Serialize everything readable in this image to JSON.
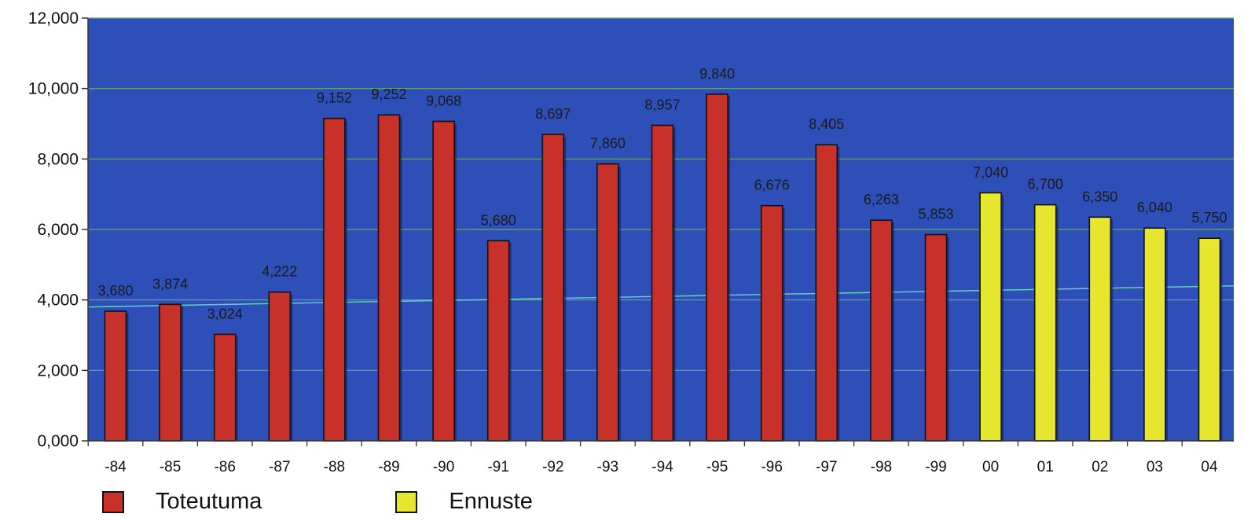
{
  "chart_data": {
    "type": "bar",
    "categories": [
      "-84",
      "-85",
      "-86",
      "-87",
      "-88",
      "-89",
      "-90",
      "-91",
      "-92",
      "-93",
      "-94",
      "-95",
      "-96",
      "-97",
      "-98",
      "-99",
      "00",
      "01",
      "02",
      "03",
      "04"
    ],
    "series": [
      {
        "name": "Toteutuma",
        "color": "#c8302a",
        "values": [
          3.68,
          3.874,
          3.024,
          4.222,
          9.152,
          9.252,
          9.068,
          5.68,
          8.697,
          7.86,
          8.957,
          9.84,
          6.676,
          8.405,
          6.263,
          5.853,
          null,
          null,
          null,
          null,
          null
        ]
      },
      {
        "name": "Ennuste",
        "color": "#e6e62e",
        "values": [
          null,
          null,
          null,
          null,
          null,
          null,
          null,
          null,
          null,
          null,
          null,
          null,
          null,
          null,
          null,
          null,
          7.04,
          6.7,
          6.35,
          6.04,
          5.75
        ]
      }
    ],
    "data_labels": [
      "3,680",
      "3,874",
      "3,024",
      "4,222",
      "9,152",
      "9,252",
      "9,068",
      "5,680",
      "8,697",
      "7,860",
      "8,957",
      "9,840",
      "6,676",
      "8,405",
      "6,263",
      "5,853",
      "7,040",
      "6,700",
      "6,350",
      "6,040",
      "5,750"
    ],
    "y_ticks": [
      0,
      2,
      4,
      6,
      8,
      10,
      12
    ],
    "y_tick_labels": [
      "0,000",
      "2,000",
      "4,000",
      "6,000",
      "8,000",
      "10,000",
      "12,000"
    ],
    "ylim": [
      0,
      12
    ],
    "trendline": {
      "from": 3.8,
      "to": 4.4,
      "color": "#5fd0c0"
    },
    "plot_background": "#2e4fb8",
    "gridline_color": "#6aa870",
    "grid": true,
    "title": "",
    "xlabel": "",
    "ylabel": "",
    "legend": {
      "position": "bottom-left",
      "items": [
        {
          "label": "Toteutuma",
          "color": "#c8302a"
        },
        {
          "label": "Ennuste",
          "color": "#e6e62e"
        }
      ]
    }
  }
}
